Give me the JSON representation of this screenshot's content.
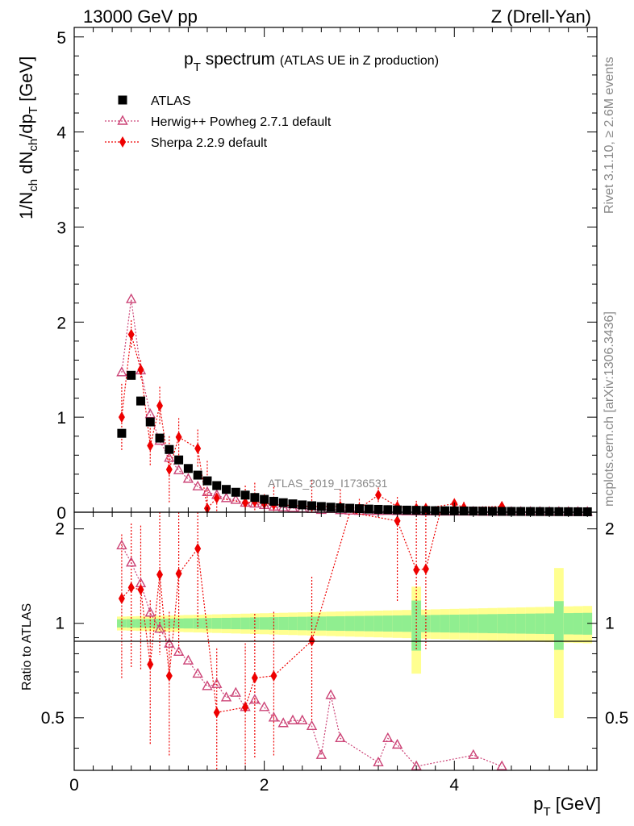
{
  "header": {
    "left": "13000 GeV pp",
    "right": "Z (Drell-Yan)"
  },
  "title": {
    "main": "p",
    "main_sub": "T",
    "main_rest": " spectrum",
    "sub": "(ATLAS UE in Z production)"
  },
  "watermark": "ATLAS_2019_I1736531",
  "side_text": {
    "rivet": "Rivet 3.1.10, ≥ 2.6M events",
    "mcplots": "mcplots.cern.ch [arXiv:1306.3436]"
  },
  "colors": {
    "data": "#000000",
    "herwig": "#cc4477",
    "sherpa": "#ee0000",
    "band_inner": "#90ee90",
    "band_outer": "#ffff90"
  },
  "chart_data": [
    {
      "type": "scatter",
      "panel": "main",
      "xlabel": "p_T [GeV]",
      "ylabel": "1/N_ch dN_ch/dp_T [GeV]",
      "xlim": [
        0,
        5.5
      ],
      "ylim": [
        0,
        5.1
      ],
      "yticks": [
        0,
        1,
        2,
        3,
        4,
        5
      ],
      "xticks": [
        0,
        2,
        4
      ],
      "legend_position": "top-left",
      "series": [
        {
          "name": "ATLAS",
          "marker": "square",
          "x": [
            0.5,
            0.6,
            0.7,
            0.8,
            0.9,
            1.0,
            1.1,
            1.2,
            1.3,
            1.4,
            1.5,
            1.6,
            1.7,
            1.8,
            1.9,
            2.0,
            2.1,
            2.2,
            2.3,
            2.4,
            2.5,
            2.6,
            2.7,
            2.8,
            2.9,
            3.0,
            3.1,
            3.2,
            3.3,
            3.4,
            3.5,
            3.6,
            3.7,
            3.8,
            3.9,
            4.0,
            4.1,
            4.2,
            4.3,
            4.4,
            4.5,
            4.6,
            4.7,
            4.8,
            4.9,
            5.0,
            5.1,
            5.2,
            5.3,
            5.4
          ],
          "y": [
            0.83,
            1.44,
            1.17,
            0.95,
            0.78,
            0.66,
            0.55,
            0.46,
            0.39,
            0.33,
            0.28,
            0.24,
            0.21,
            0.18,
            0.155,
            0.135,
            0.115,
            0.1,
            0.088,
            0.077,
            0.068,
            0.06,
            0.053,
            0.047,
            0.042,
            0.037,
            0.033,
            0.03,
            0.027,
            0.024,
            0.022,
            0.02,
            0.018,
            0.016,
            0.015,
            0.014,
            0.013,
            0.012,
            0.011,
            0.01,
            0.009,
            0.0085,
            0.008,
            0.0075,
            0.007,
            0.0065,
            0.006,
            0.0055,
            0.005,
            0.0045
          ]
        },
        {
          "name": "Herwig++ Powheg 2.7.1 default",
          "marker": "open-triangle",
          "x": [
            0.5,
            0.6,
            0.7,
            0.8,
            0.9,
            1.0,
            1.1,
            1.2,
            1.3,
            1.4,
            1.5,
            1.6,
            1.7,
            1.8,
            1.9,
            2.0,
            2.1,
            2.2,
            2.3,
            2.4,
            2.5,
            2.6,
            2.7,
            2.8,
            2.9,
            3.0,
            3.1,
            3.2,
            3.3,
            3.4,
            3.5,
            3.6,
            3.7,
            3.8,
            3.9,
            4.0,
            4.1,
            4.2,
            4.3,
            4.4,
            4.5,
            4.6,
            4.7,
            4.8,
            4.9,
            5.0,
            5.1,
            5.2,
            5.3,
            5.4
          ],
          "y": [
            1.47,
            2.24,
            1.49,
            1.03,
            0.75,
            0.57,
            0.44,
            0.35,
            0.27,
            0.21,
            0.18,
            0.146,
            0.128,
            0.098,
            0.089,
            0.074,
            0.057,
            0.049,
            0.043,
            0.038,
            0.032,
            0.022,
            0.032,
            0.02,
            0.015,
            0.012,
            0.01,
            0.011,
            0.012,
            0.01,
            0.008,
            0.007,
            0.006,
            0.006,
            0.005,
            0.005,
            0.005,
            0.005,
            0.004,
            0.004,
            0.003,
            0.003,
            0.003,
            0.003,
            0.003,
            0.002,
            0.002,
            0.002,
            0.002,
            0.002
          ]
        },
        {
          "name": "Sherpa 2.2.9 default",
          "marker": "diamond",
          "x": [
            0.5,
            0.6,
            0.7,
            0.8,
            0.9,
            1.0,
            1.1,
            1.3,
            1.4,
            1.5,
            1.8,
            1.9,
            2.0,
            2.1,
            2.5,
            2.8,
            3.0,
            3.2,
            3.4,
            3.6,
            3.7,
            4.0,
            4.1,
            4.5
          ],
          "y": [
            1.0,
            1.87,
            1.5,
            0.7,
            1.12,
            0.45,
            0.79,
            0.67,
            0.04,
            0.15,
            0.1,
            0.11,
            0.09,
            0.08,
            0.06,
            0.06,
            0.04,
            0.18,
            0.06,
            0.04,
            0.04,
            0.09,
            0.05,
            0.06
          ]
        }
      ]
    },
    {
      "type": "scatter",
      "panel": "ratio",
      "xlabel": "p_T [GeV]",
      "ylabel": "Ratio to ATLAS",
      "xlim": [
        0,
        5.5
      ],
      "ylim": [
        0.34,
        2.26
      ],
      "yticks": [
        0.5,
        1,
        2
      ],
      "xticks": [
        0,
        2,
        4
      ],
      "series": [
        {
          "name": "Herwig++ Powheg 2.7.1 default",
          "marker": "open-triangle",
          "x": [
            0.5,
            0.6,
            0.7,
            0.8,
            0.9,
            1.0,
            1.1,
            1.2,
            1.3,
            1.4,
            1.5,
            1.6,
            1.7,
            1.8,
            1.9,
            2.0,
            2.1,
            2.2,
            2.3,
            2.4,
            2.5,
            2.6,
            2.7,
            2.8,
            3.2,
            3.3,
            3.4,
            3.6,
            4.2,
            4.5
          ],
          "y": [
            1.77,
            1.56,
            1.34,
            1.08,
            0.96,
            0.86,
            0.81,
            0.76,
            0.69,
            0.63,
            0.64,
            0.58,
            0.6,
            0.54,
            0.57,
            0.54,
            0.5,
            0.48,
            0.49,
            0.49,
            0.47,
            0.38,
            0.59,
            0.43,
            0.36,
            0.43,
            0.41,
            0.35,
            0.38,
            0.35
          ]
        },
        {
          "name": "Sherpa 2.2.9 default",
          "marker": "diamond",
          "x": [
            0.5,
            0.6,
            0.7,
            0.8,
            0.9,
            1.0,
            1.1,
            1.3,
            1.5,
            1.8,
            1.9,
            2.1,
            2.5,
            3.4,
            3.6,
            3.7
          ],
          "y": [
            1.2,
            1.3,
            1.28,
            0.74,
            1.43,
            0.68,
            1.44,
            1.73,
            0.52,
            0.54,
            0.67,
            0.68,
            0.88,
            2.12,
            1.48,
            1.49
          ]
        }
      ]
    }
  ]
}
